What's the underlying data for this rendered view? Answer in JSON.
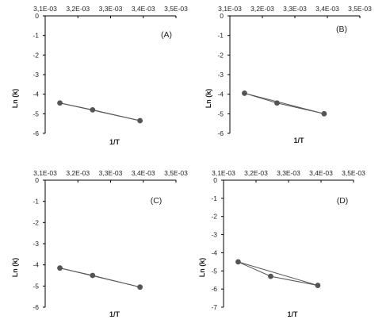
{
  "colors": {
    "axis": "#000000",
    "series": "#555555",
    "marker": "#555555"
  },
  "chart_data": [
    {
      "type": "scatter",
      "panel_label": "(A)",
      "xlabel": "1/T",
      "ylabel": "Ln (k)",
      "x_axis_position": "top",
      "grid": false,
      "xlim": [
        0.0031,
        0.0035
      ],
      "ylim": [
        -6,
        0
      ],
      "xticks": [
        "3,1E-03",
        "3,2E-03",
        "3,3E-03",
        "3,4E-03",
        "3,5E-03"
      ],
      "yticks": [
        "0",
        "-1",
        "-2",
        "-3",
        "-4",
        "-5",
        "-6"
      ],
      "series": [
        {
          "x": [
            0.003145,
            0.003245,
            0.00339
          ],
          "y": [
            -4.45,
            -4.8,
            -5.35
          ]
        }
      ]
    },
    {
      "type": "scatter",
      "panel_label": "(B)",
      "xlabel": "1/T",
      "ylabel": "Ln (k)",
      "x_axis_position": "top",
      "grid": false,
      "xlim": [
        0.0031,
        0.0035
      ],
      "ylim": [
        -6,
        0
      ],
      "xticks": [
        "3,1E-03",
        "3,2E-03",
        "3,3E-03",
        "3,4E-03",
        "3,5E-03"
      ],
      "yticks": [
        "0",
        "-1",
        "-2",
        "-3",
        "-4",
        "-5",
        "-6"
      ],
      "series": [
        {
          "x": [
            0.003145,
            0.003245,
            0.00339
          ],
          "y": [
            -3.95,
            -4.45,
            -5.0
          ]
        }
      ]
    },
    {
      "type": "scatter",
      "panel_label": "(C)",
      "xlabel": "1/T",
      "ylabel": "Ln (k)",
      "x_axis_position": "top",
      "grid": false,
      "xlim": [
        0.0031,
        0.0035
      ],
      "ylim": [
        -6,
        0
      ],
      "xticks": [
        "3,1E-03",
        "3,2E-03",
        "3,3E-03",
        "3,4E-03",
        "3,5E-03"
      ],
      "yticks": [
        "0",
        "-1",
        "-2",
        "-3",
        "-4",
        "-5",
        "-6"
      ],
      "series": [
        {
          "x": [
            0.003145,
            0.003245,
            0.00339
          ],
          "y": [
            -4.15,
            -4.5,
            -5.05
          ]
        }
      ]
    },
    {
      "type": "scatter",
      "panel_label": "(D)",
      "xlabel": "1/T",
      "ylabel": "Ln (k)",
      "x_axis_position": "top",
      "grid": false,
      "xlim": [
        0.0031,
        0.0035
      ],
      "ylim": [
        -7,
        0
      ],
      "xticks": [
        "3,1E-03",
        "3,2E-03",
        "3,3E-03",
        "3,4E-03",
        "3,5E-03"
      ],
      "yticks": [
        "0",
        "-1",
        "-2",
        "-3",
        "-4",
        "-5",
        "-6",
        "-7"
      ],
      "series": [
        {
          "x": [
            0.003145,
            0.003245,
            0.00339
          ],
          "y": [
            -4.5,
            -5.3,
            -5.8
          ]
        }
      ]
    }
  ]
}
